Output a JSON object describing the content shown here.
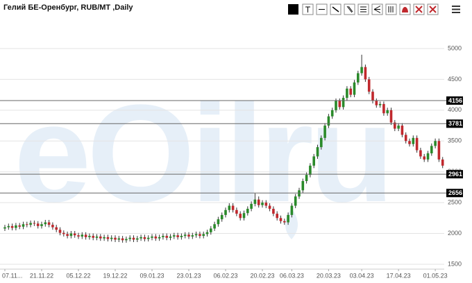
{
  "chart_data": {
    "type": "candlestick",
    "title": "Гелий БЕ-Оренбург, RUB/MT ,Daily",
    "watermark": "eOilru",
    "categories": [
      "07.11...",
      null,
      null,
      null,
      null,
      null,
      null,
      null,
      null,
      null,
      "21.11.22",
      null,
      null,
      null,
      null,
      null,
      null,
      null,
      null,
      null,
      "05.12.22",
      null,
      null,
      null,
      null,
      null,
      null,
      null,
      null,
      null,
      "19.12.22",
      null,
      null,
      null,
      null,
      null,
      null,
      null,
      null,
      null,
      "09.01.23",
      null,
      null,
      null,
      null,
      null,
      null,
      null,
      null,
      null,
      "23.01.23",
      null,
      null,
      null,
      null,
      null,
      null,
      null,
      null,
      null,
      "06.02.23",
      null,
      null,
      null,
      null,
      null,
      null,
      null,
      null,
      null,
      "20.02.23",
      null,
      null,
      null,
      null,
      null,
      null,
      null,
      "06.03.23",
      null,
      null,
      null,
      null,
      null,
      null,
      null,
      null,
      null,
      "20.03.23",
      null,
      null,
      null,
      null,
      null,
      null,
      null,
      null,
      "03.04.23",
      null,
      null,
      null,
      null,
      null,
      null,
      null,
      null,
      null,
      "17.04.23",
      null,
      null,
      null,
      null,
      null,
      null,
      null,
      null,
      null,
      "01.05.23",
      null,
      null
    ],
    "open": [
      2080,
      2100,
      2120,
      2090,
      2130,
      2110,
      2150,
      2140,
      2170,
      2160,
      2120,
      2150,
      2180,
      2140,
      2100,
      2060,
      2010,
      1990,
      1960,
      2000,
      1970,
      1950,
      1980,
      1940,
      1960,
      1930,
      1950,
      1920,
      1940,
      1910,
      1930,
      1900,
      1920,
      1890,
      1910,
      1930,
      1900,
      1920,
      1940,
      1910,
      1930,
      1950,
      1920,
      1940,
      1960,
      1930,
      1950,
      1970,
      1940,
      1960,
      1980,
      1950,
      1970,
      1990,
      1960,
      1990,
      2020,
      2080,
      2150,
      2230,
      2300,
      2380,
      2450,
      2380,
      2320,
      2250,
      2330,
      2400,
      2480,
      2550,
      2460,
      2500,
      2450,
      2400,
      2320,
      2250,
      2200,
      2180,
      2300,
      2450,
      2600,
      2700,
      2850,
      2950,
      3100,
      3250,
      3400,
      3550,
      3750,
      3900,
      4000,
      4150,
      4050,
      4200,
      4350,
      4250,
      4450,
      4600,
      4700,
      4500,
      4300,
      4150,
      4080,
      4100,
      3950,
      4000,
      3800,
      3700,
      3750,
      3600,
      3500,
      3450,
      3550,
      3350,
      3250,
      3200,
      3300,
      3420,
      3500,
      3200
    ],
    "high": [
      2140,
      2160,
      2160,
      2170,
      2170,
      2190,
      2190,
      2210,
      2210,
      2200,
      2190,
      2220,
      2220,
      2180,
      2140,
      2100,
      2050,
      2030,
      2040,
      2040,
      2010,
      2020,
      2020,
      2000,
      2000,
      1990,
      1990,
      1980,
      1980,
      1970,
      1970,
      1960,
      1960,
      1950,
      1970,
      1970,
      1960,
      1980,
      1980,
      1970,
      1990,
      1990,
      1980,
      2000,
      2000,
      1990,
      2010,
      2010,
      2000,
      2020,
      2020,
      2010,
      2030,
      2030,
      2030,
      2060,
      2120,
      2190,
      2270,
      2340,
      2420,
      2490,
      2490,
      2420,
      2360,
      2370,
      2440,
      2520,
      2650,
      2600,
      2540,
      2540,
      2490,
      2440,
      2360,
      2290,
      2240,
      2340,
      2490,
      2640,
      2740,
      2890,
      2990,
      3140,
      3290,
      3440,
      3590,
      3790,
      3940,
      4040,
      4190,
      4190,
      4240,
      4390,
      4390,
      4490,
      4640,
      4900,
      4740,
      4540,
      4340,
      4190,
      4140,
      4140,
      4040,
      4040,
      3840,
      3790,
      3790,
      3640,
      3540,
      3590,
      3590,
      3390,
      3290,
      3340,
      3460,
      3540,
      3540,
      3240
    ],
    "low": [
      2040,
      2060,
      2050,
      2050,
      2070,
      2070,
      2100,
      2100,
      2120,
      2080,
      2080,
      2110,
      2100,
      2060,
      2020,
      1970,
      1950,
      1920,
      1920,
      1930,
      1910,
      1910,
      1900,
      1900,
      1890,
      1890,
      1880,
      1880,
      1870,
      1870,
      1860,
      1860,
      1850,
      1850,
      1870,
      1860,
      1860,
      1880,
      1870,
      1870,
      1890,
      1880,
      1880,
      1900,
      1890,
      1890,
      1910,
      1900,
      1900,
      1920,
      1910,
      1910,
      1930,
      1920,
      1920,
      1950,
      1980,
      2040,
      2110,
      2190,
      2260,
      2340,
      2340,
      2280,
      2210,
      2210,
      2290,
      2360,
      2440,
      2420,
      2420,
      2410,
      2360,
      2280,
      2210,
      2160,
      2140,
      2140,
      2260,
      2410,
      2560,
      2660,
      2810,
      2910,
      3060,
      3210,
      3360,
      3510,
      3710,
      3860,
      3960,
      4010,
      4010,
      4160,
      4210,
      4210,
      4410,
      4560,
      4460,
      4260,
      4110,
      4040,
      4040,
      3910,
      3910,
      3760,
      3660,
      3660,
      3560,
      3460,
      3410,
      3410,
      3310,
      3210,
      3160,
      3160,
      3260,
      3380,
      3160,
      3060
    ],
    "close": [
      2100,
      2120,
      2090,
      2130,
      2110,
      2150,
      2140,
      2170,
      2160,
      2120,
      2150,
      2180,
      2140,
      2100,
      2060,
      2010,
      1990,
      1960,
      2000,
      1970,
      1950,
      1980,
      1940,
      1960,
      1930,
      1950,
      1920,
      1940,
      1910,
      1930,
      1900,
      1920,
      1890,
      1910,
      1930,
      1900,
      1920,
      1940,
      1910,
      1930,
      1950,
      1920,
      1940,
      1960,
      1930,
      1950,
      1970,
      1940,
      1960,
      1980,
      1950,
      1970,
      1990,
      1960,
      1990,
      2020,
      2080,
      2150,
      2230,
      2300,
      2380,
      2450,
      2380,
      2320,
      2250,
      2330,
      2400,
      2480,
      2550,
      2460,
      2500,
      2450,
      2400,
      2320,
      2250,
      2200,
      2180,
      2300,
      2450,
      2600,
      2700,
      2850,
      2950,
      3100,
      3250,
      3400,
      3550,
      3750,
      3900,
      4000,
      4150,
      4050,
      4200,
      4350,
      4250,
      4450,
      4600,
      4700,
      4500,
      4300,
      4150,
      4080,
      4100,
      3950,
      4000,
      3800,
      3700,
      3750,
      3600,
      3500,
      3450,
      3550,
      3350,
      3250,
      3200,
      3300,
      3420,
      3500,
      3200,
      3100
    ],
    "up_color": "#2a8a2a",
    "down_color": "#c0282d",
    "levels": [
      4156,
      3781,
      2961,
      2656
    ],
    "ylim": [
      1376,
      5450
    ],
    "yticks": [
      1500,
      2000,
      2500,
      3000,
      3500,
      4000,
      4500,
      5000
    ],
    "grid": true
  }
}
